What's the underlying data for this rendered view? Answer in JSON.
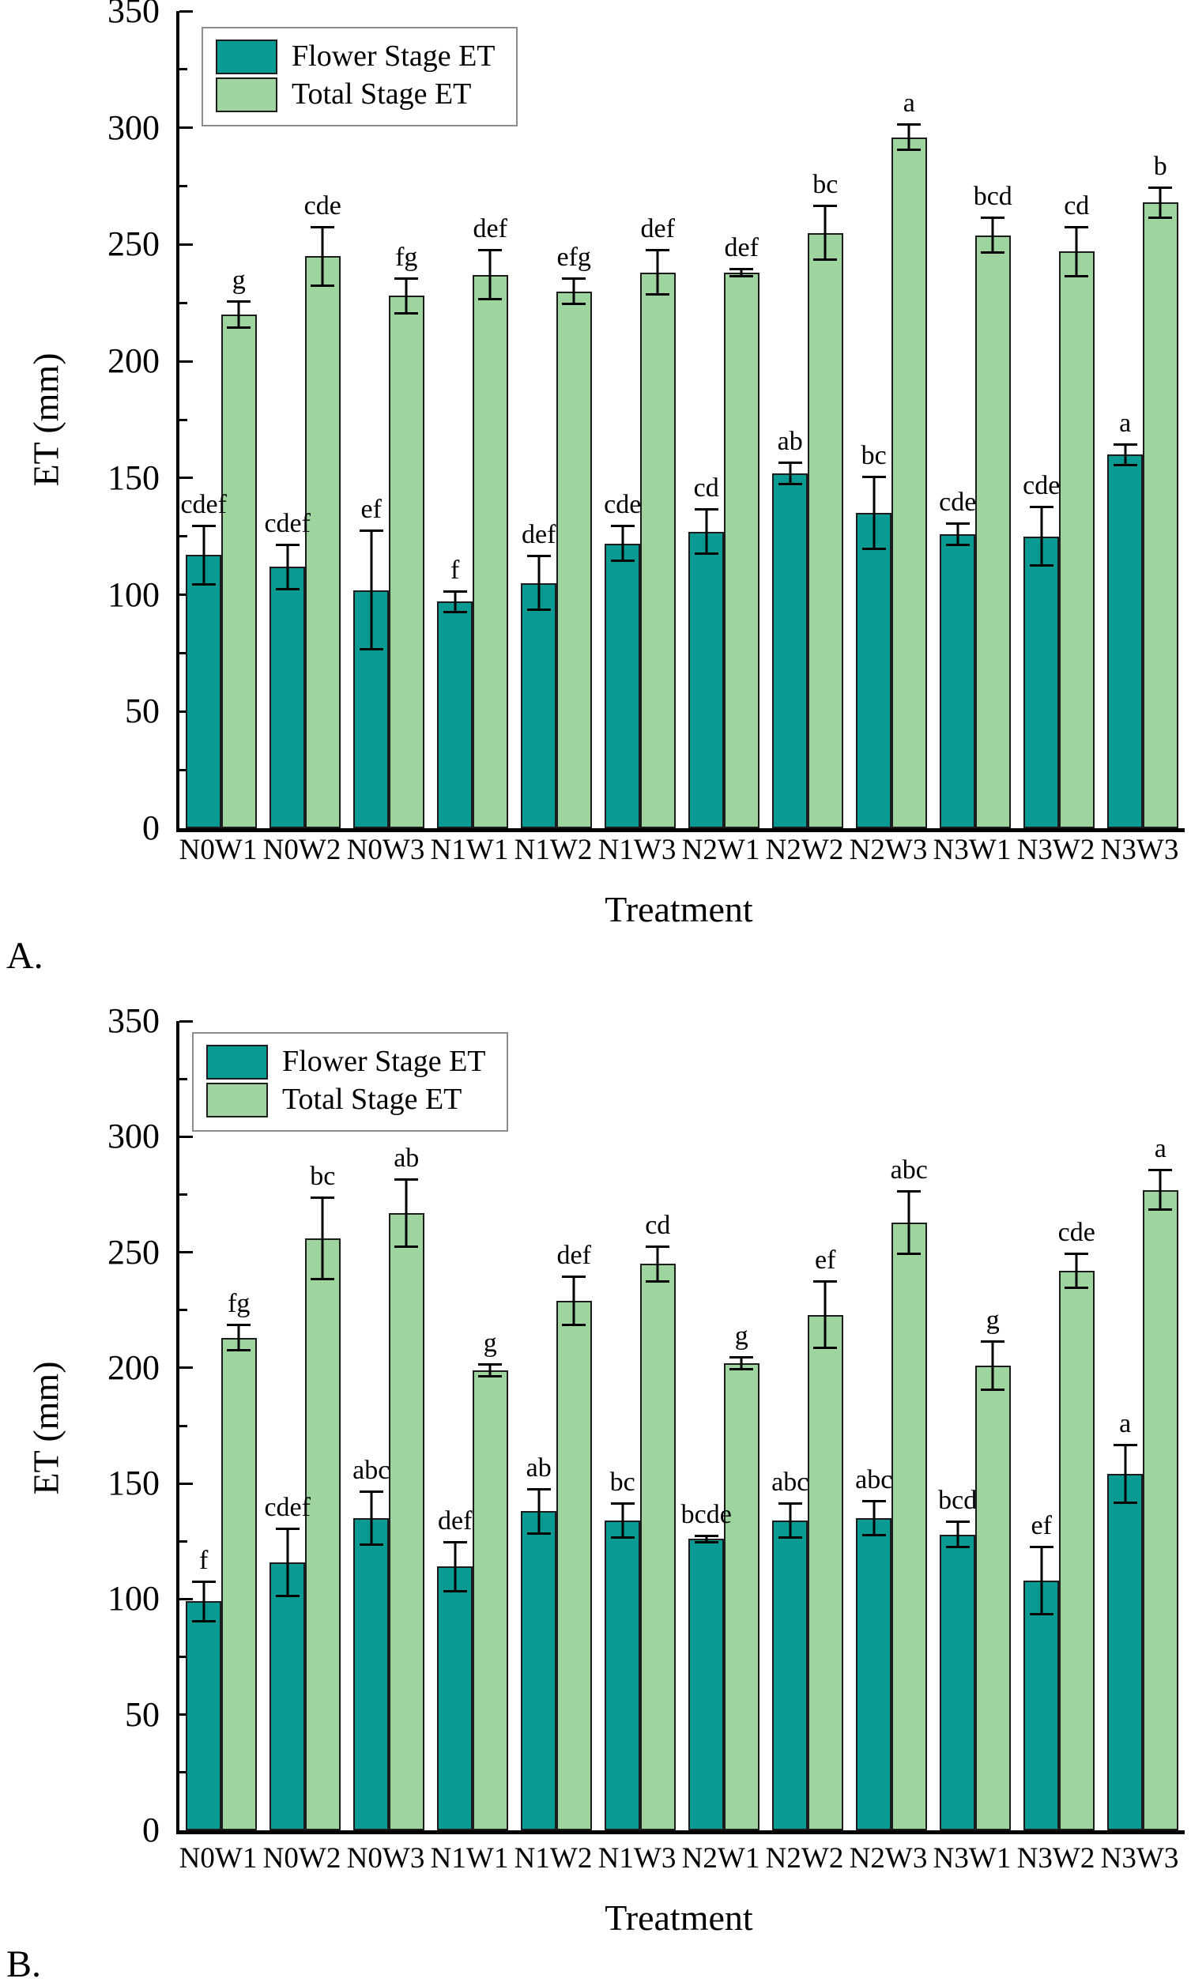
{
  "page": {
    "background": "#ffffff"
  },
  "colors": {
    "flower": "#089a93",
    "total": "#9ed49e",
    "bar_edge": "#1c1c1c",
    "axis": "#000000",
    "legend_border": "#8c8c8c"
  },
  "legend": {
    "flower_label": "Flower Stage ET",
    "total_label": "Total Stage ET"
  },
  "chart_data": [
    {
      "panel": "A.",
      "type": "bar",
      "title": "",
      "xlabel": "Treatment",
      "ylabel": "ET (mm)",
      "ylim": [
        0,
        350
      ],
      "y_major_ticks": [
        0,
        50,
        100,
        150,
        200,
        250,
        300,
        350
      ],
      "y_minor_step": 25,
      "grid": "off",
      "legend_position": "upper-left",
      "categories": [
        "N0W1",
        "N0W2",
        "N0W3",
        "N1W1",
        "N1W2",
        "N1W3",
        "N2W1",
        "N2W2",
        "N2W3",
        "N3W1",
        "N3W2",
        "N3W3"
      ],
      "series": [
        {
          "name": "Flower Stage ET",
          "color_key": "flower",
          "values": [
            117,
            112,
            102,
            97,
            105,
            122,
            127,
            152,
            135,
            126,
            125,
            160
          ],
          "errors": [
            13,
            10,
            26,
            5,
            12,
            8,
            10,
            5,
            16,
            5,
            13,
            5
          ],
          "letters": [
            "cdef",
            "cdef",
            "ef",
            "f",
            "def",
            "cde",
            "cd",
            "ab",
            "bc",
            "cde",
            "cde",
            "a"
          ]
        },
        {
          "name": "Total Stage ET",
          "color_key": "total",
          "values": [
            220,
            245,
            228,
            237,
            230,
            238,
            238,
            255,
            296,
            254,
            247,
            268
          ],
          "errors": [
            6,
            13,
            8,
            11,
            6,
            10,
            2,
            12,
            6,
            8,
            11,
            7
          ],
          "letters": [
            "g",
            "cde",
            "fg",
            "def",
            "efg",
            "def",
            "def",
            "bc",
            "a",
            "bcd",
            "cd",
            "b"
          ]
        }
      ]
    },
    {
      "panel": "B.",
      "type": "bar",
      "title": "",
      "xlabel": "Treatment",
      "ylabel": "ET (mm)",
      "ylim": [
        0,
        350
      ],
      "y_major_ticks": [
        0,
        50,
        100,
        150,
        200,
        250,
        300,
        350
      ],
      "y_minor_step": 25,
      "grid": "off",
      "legend_position": "upper-left",
      "categories": [
        "N0W1",
        "N0W2",
        "N0W3",
        "N1W1",
        "N1W2",
        "N1W3",
        "N2W1",
        "N2W2",
        "N2W3",
        "N3W1",
        "N3W2",
        "N3W3"
      ],
      "series": [
        {
          "name": "Flower Stage ET",
          "color_key": "flower",
          "values": [
            99,
            116,
            135,
            114,
            138,
            134,
            126,
            134,
            135,
            128,
            108,
            154
          ],
          "errors": [
            9,
            15,
            12,
            11,
            10,
            8,
            2,
            8,
            8,
            6,
            15,
            13
          ],
          "letters": [
            "f",
            "cdef",
            "abc",
            "def",
            "ab",
            "bc",
            "bcde",
            "abc",
            "abc",
            "bcd",
            "ef",
            "a"
          ]
        },
        {
          "name": "Total Stage ET",
          "color_key": "total",
          "values": [
            213,
            256,
            267,
            199,
            229,
            245,
            202,
            223,
            263,
            201,
            242,
            277
          ],
          "errors": [
            6,
            18,
            15,
            3,
            11,
            8,
            3,
            15,
            14,
            11,
            8,
            9
          ],
          "letters": [
            "fg",
            "bc",
            "ab",
            "g",
            "def",
            "cd",
            "g",
            "ef",
            "abc",
            "g",
            "cde",
            "a"
          ]
        }
      ]
    }
  ]
}
